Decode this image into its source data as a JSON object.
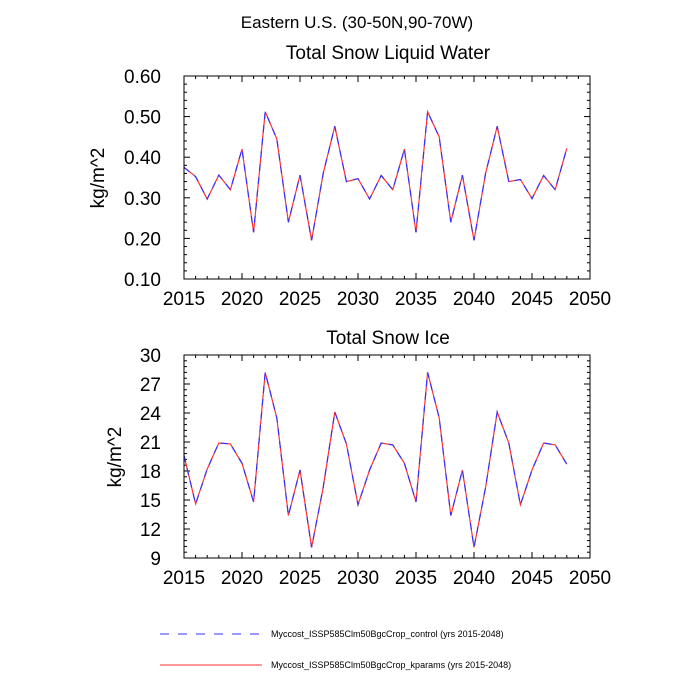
{
  "figure": {
    "title": "Eastern U.S. (30-50N,90-70W)"
  },
  "colors": {
    "control": "#3333ff",
    "kparams": "#ff3333",
    "axis": "#000000"
  },
  "chart_data": [
    {
      "type": "line",
      "title": "Total Snow Liquid Water",
      "xlabel": "",
      "ylabel": "kg/m^2",
      "xlim": [
        2015,
        2050
      ],
      "ylim": [
        0.1,
        0.6
      ],
      "xticks": [
        2015,
        2020,
        2025,
        2030,
        2035,
        2040,
        2045,
        2050
      ],
      "xtick_labels": [
        "2015",
        "2020",
        "2025",
        "2030",
        "2035",
        "2040",
        "2045",
        "2050"
      ],
      "yticks": [
        0.1,
        0.2,
        0.3,
        0.4,
        0.5,
        0.6
      ],
      "ytick_labels": [
        "0.10",
        "0.20",
        "0.30",
        "0.40",
        "0.50",
        "0.60"
      ],
      "grid": false,
      "x": [
        2015,
        2016,
        2017,
        2018,
        2019,
        2020,
        2021,
        2022,
        2023,
        2024,
        2025,
        2026,
        2027,
        2028,
        2029,
        2030,
        2031,
        2032,
        2033,
        2034,
        2035,
        2036,
        2037,
        2038,
        2039,
        2040,
        2041,
        2042,
        2043,
        2044,
        2045,
        2046,
        2047,
        2048
      ],
      "series": [
        {
          "name": "Myccost_ISSP585Clm50BgcCrop_control (yrs 2015-2048)",
          "style": "dashed",
          "values": [
            0.375,
            0.352,
            0.297,
            0.356,
            0.32,
            0.42,
            0.215,
            0.512,
            0.445,
            0.24,
            0.356,
            0.195,
            0.36,
            0.476,
            0.34,
            0.347,
            0.297,
            0.355,
            0.32,
            0.42,
            0.215,
            0.512,
            0.45,
            0.24,
            0.356,
            0.195,
            0.36,
            0.476,
            0.34,
            0.345,
            0.298,
            0.355,
            0.32,
            0.422
          ]
        },
        {
          "name": "Myccost_ISSP585Clm50BgcCrop_kparams (yrs 2015-2048)",
          "style": "solid",
          "values": [
            0.375,
            0.352,
            0.297,
            0.356,
            0.32,
            0.42,
            0.215,
            0.512,
            0.445,
            0.24,
            0.356,
            0.195,
            0.36,
            0.476,
            0.34,
            0.347,
            0.297,
            0.355,
            0.32,
            0.42,
            0.215,
            0.512,
            0.45,
            0.24,
            0.356,
            0.195,
            0.36,
            0.476,
            0.34,
            0.345,
            0.298,
            0.355,
            0.32,
            0.422
          ]
        }
      ]
    },
    {
      "type": "line",
      "title": "Total Snow Ice",
      "xlabel": "",
      "ylabel": "kg/m^2",
      "xlim": [
        2015,
        2050
      ],
      "ylim": [
        9,
        30
      ],
      "xticks": [
        2015,
        2020,
        2025,
        2030,
        2035,
        2040,
        2045,
        2050
      ],
      "xtick_labels": [
        "2015",
        "2020",
        "2025",
        "2030",
        "2035",
        "2040",
        "2045",
        "2050"
      ],
      "yticks": [
        9,
        12,
        15,
        18,
        21,
        24,
        27,
        30
      ],
      "ytick_labels": [
        "9",
        "12",
        "15",
        "18",
        "21",
        "24",
        "27",
        "30"
      ],
      "grid": false,
      "x": [
        2015,
        2016,
        2017,
        2018,
        2019,
        2020,
        2021,
        2022,
        2023,
        2024,
        2025,
        2026,
        2027,
        2028,
        2029,
        2030,
        2031,
        2032,
        2033,
        2034,
        2035,
        2036,
        2037,
        2038,
        2039,
        2040,
        2041,
        2042,
        2043,
        2044,
        2045,
        2046,
        2047,
        2048
      ],
      "series": [
        {
          "name": "Myccost_ISSP585Clm50BgcCrop_control (yrs 2015-2048)",
          "style": "dashed",
          "values": [
            19.6,
            14.6,
            18.2,
            20.9,
            20.8,
            18.8,
            14.8,
            28.2,
            23.5,
            13.4,
            18.1,
            10.1,
            16.3,
            24.1,
            20.8,
            14.5,
            18.1,
            20.9,
            20.7,
            18.8,
            14.8,
            28.2,
            23.5,
            13.4,
            18.1,
            10.1,
            16.3,
            24.1,
            20.9,
            14.5,
            18.1,
            20.9,
            20.7,
            18.7
          ]
        },
        {
          "name": "Myccost_ISSP585Clm50BgcCrop_kparams (yrs 2015-2048)",
          "style": "solid",
          "values": [
            19.6,
            14.6,
            18.2,
            20.9,
            20.8,
            18.8,
            14.8,
            28.2,
            23.5,
            13.4,
            18.1,
            10.1,
            16.3,
            24.1,
            20.8,
            14.5,
            18.1,
            20.9,
            20.7,
            18.8,
            14.8,
            28.2,
            23.5,
            13.4,
            18.1,
            10.1,
            16.3,
            24.1,
            20.9,
            14.5,
            18.1,
            20.9,
            20.7,
            18.7
          ]
        }
      ]
    }
  ],
  "legend": {
    "placement": "bottom",
    "entries": [
      {
        "label": "Myccost_ISSP585Clm50BgcCrop_control (yrs 2015-2048)",
        "style": "dashed",
        "color": "#3333ff"
      },
      {
        "label": "Myccost_ISSP585Clm50BgcCrop_kparams (yrs 2015-2048)",
        "style": "solid",
        "color": "#ff3333"
      }
    ]
  }
}
